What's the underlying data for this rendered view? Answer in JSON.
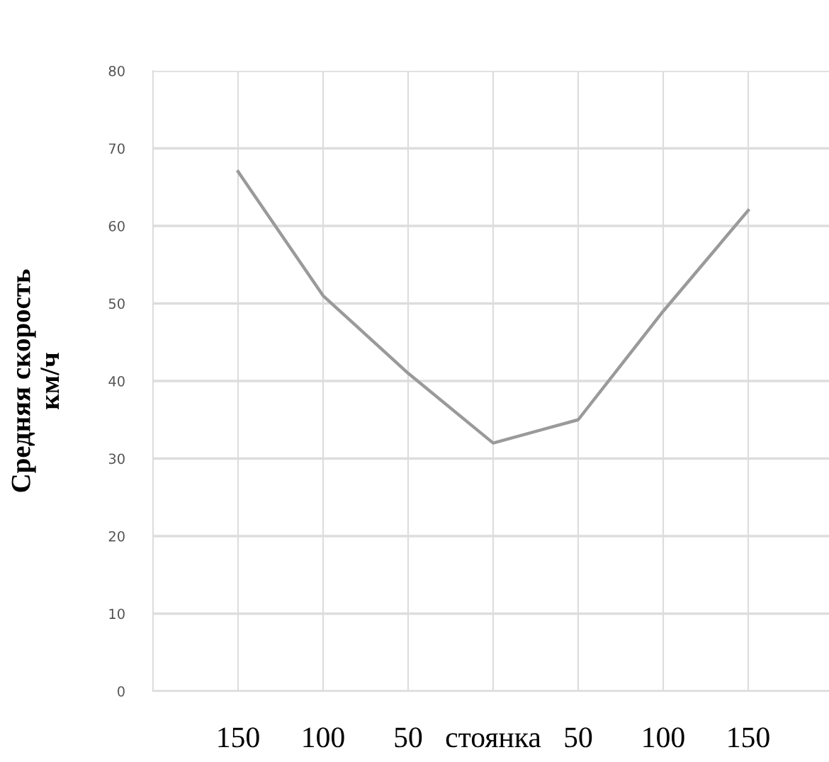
{
  "chart_data": {
    "type": "line",
    "ylabel": "Средняя скорость\nкм/ч",
    "categories": [
      "150",
      "100",
      "50",
      "стоянка",
      "50",
      "100",
      "150"
    ],
    "series": [
      {
        "color": "#9a9a9a",
        "values": [
          67,
          51,
          41,
          32,
          35,
          49,
          62
        ]
      }
    ],
    "ylim": [
      0,
      80
    ],
    "yticks": [
      0,
      10,
      20,
      30,
      40,
      50,
      60,
      70,
      80
    ],
    "grid": true,
    "marker": "none",
    "line_style": "solid",
    "legend": false
  }
}
